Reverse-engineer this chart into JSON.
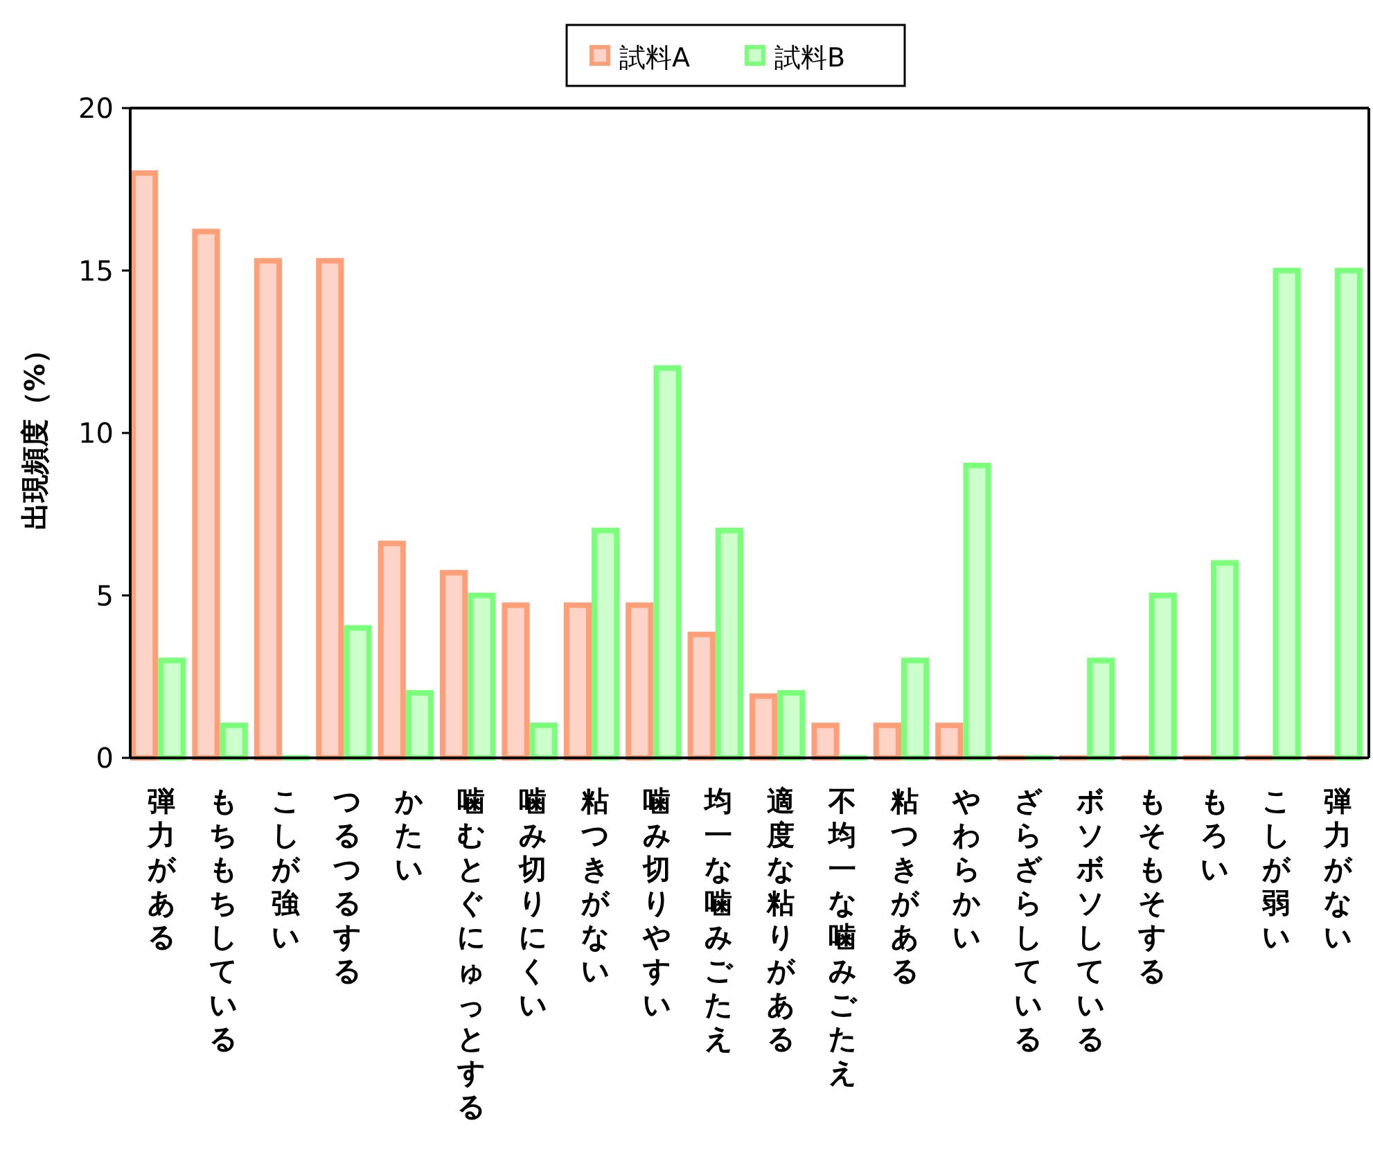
{
  "chart_data": {
    "type": "bar",
    "ylabel": "出現頻度（%）",
    "legend": "top",
    "categories": [
      "弾力がある",
      "もちもちしている",
      "こしが強い",
      "つるつるする",
      "かたい",
      "噛むとぐにゅっとする",
      "噛み切りにくい",
      "粘つきがない",
      "噛み切りやすい",
      "均一な噛みごたえ",
      "適度な粘りがある",
      "不均一な噛みごたえ",
      "粘つきがある",
      "やわらかい",
      "ざらざらしている",
      "ボソボソしている",
      "もそもそする",
      "もろい",
      "こしが弱い",
      "弾力がない"
    ],
    "series": [
      {
        "name": "試料A",
        "color": "#ffd4c8",
        "values": [
          18,
          16.2,
          15.3,
          15.3,
          6.6,
          5.7,
          4.7,
          4.7,
          4.7,
          3.8,
          1.9,
          1,
          1,
          1,
          0,
          0,
          0,
          0,
          0,
          0
        ]
      },
      {
        "name": "試料B",
        "color": "#ccffcc",
        "values": [
          3,
          1,
          0,
          4,
          2,
          5,
          1,
          7,
          12,
          7,
          2,
          0,
          3,
          9,
          0,
          3,
          5,
          6,
          15,
          15
        ]
      }
    ],
    "ylim": [
      0,
      20
    ],
    "yticks": [
      0,
      5,
      10,
      15,
      20
    ],
    "grid": false
  }
}
